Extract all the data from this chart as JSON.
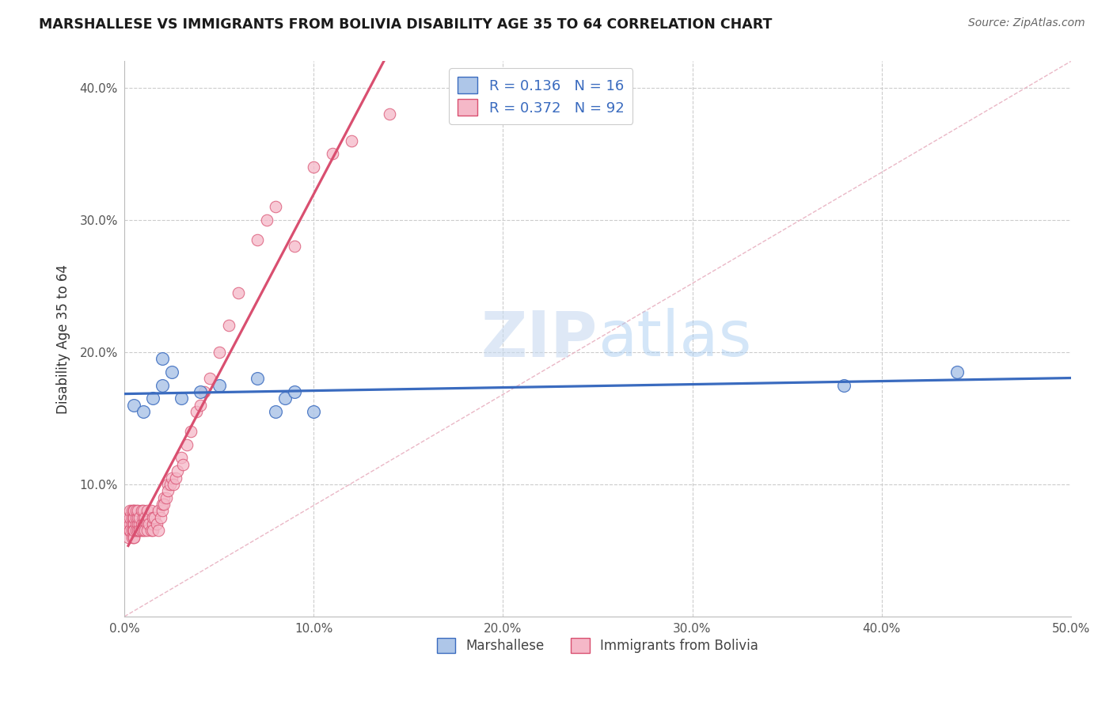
{
  "title": "MARSHALLESE VS IMMIGRANTS FROM BOLIVIA DISABILITY AGE 35 TO 64 CORRELATION CHART",
  "source": "Source: ZipAtlas.com",
  "ylabel": "Disability Age 35 to 64",
  "xlim": [
    0.0,
    0.5
  ],
  "ylim": [
    0.0,
    0.42
  ],
  "xticks": [
    0.0,
    0.1,
    0.2,
    0.3,
    0.4,
    0.5
  ],
  "yticks": [
    0.0,
    0.1,
    0.2,
    0.3,
    0.4
  ],
  "xtick_labels": [
    "0.0%",
    "10.0%",
    "20.0%",
    "30.0%",
    "40.0%",
    "50.0%"
  ],
  "ytick_labels": [
    "",
    "10.0%",
    "20.0%",
    "30.0%",
    "40.0%"
  ],
  "r_marshallese": 0.136,
  "n_marshallese": 16,
  "r_bolivia": 0.372,
  "n_bolivia": 92,
  "marshallese_color": "#aec6e8",
  "bolivia_color": "#f5b8c8",
  "line_marshallese_color": "#3a6bbf",
  "line_bolivia_color": "#d94f70",
  "ref_line_color": "#e8b0c0",
  "grid_color": "#cccccc",
  "title_color": "#1a1a1a",
  "source_color": "#666666",
  "legend_label_marshallese": "Marshallese",
  "legend_label_bolivia": "Immigrants from Bolivia",
  "watermark_zip": "ZIP",
  "watermark_atlas": "atlas",
  "marshallese_x": [
    0.005,
    0.01,
    0.015,
    0.02,
    0.02,
    0.025,
    0.03,
    0.04,
    0.05,
    0.07,
    0.08,
    0.085,
    0.09,
    0.1,
    0.38,
    0.44
  ],
  "marshallese_y": [
    0.16,
    0.155,
    0.165,
    0.195,
    0.175,
    0.185,
    0.165,
    0.17,
    0.175,
    0.18,
    0.155,
    0.165,
    0.17,
    0.155,
    0.175,
    0.185
  ],
  "bolivia_x": [
    0.002,
    0.002,
    0.002,
    0.002,
    0.003,
    0.003,
    0.003,
    0.003,
    0.003,
    0.004,
    0.004,
    0.004,
    0.004,
    0.004,
    0.005,
    0.005,
    0.005,
    0.005,
    0.005,
    0.005,
    0.005,
    0.005,
    0.005,
    0.005,
    0.005,
    0.006,
    0.006,
    0.006,
    0.006,
    0.007,
    0.007,
    0.007,
    0.007,
    0.008,
    0.008,
    0.008,
    0.008,
    0.009,
    0.009,
    0.009,
    0.01,
    0.01,
    0.01,
    0.01,
    0.011,
    0.011,
    0.012,
    0.012,
    0.012,
    0.013,
    0.013,
    0.014,
    0.014,
    0.015,
    0.015,
    0.015,
    0.016,
    0.017,
    0.018,
    0.018,
    0.019,
    0.02,
    0.02,
    0.021,
    0.021,
    0.022,
    0.023,
    0.023,
    0.024,
    0.025,
    0.026,
    0.027,
    0.028,
    0.03,
    0.031,
    0.033,
    0.035,
    0.038,
    0.04,
    0.042,
    0.045,
    0.05,
    0.055,
    0.06,
    0.07,
    0.075,
    0.08,
    0.09,
    0.1,
    0.11,
    0.12,
    0.14
  ],
  "bolivia_y": [
    0.065,
    0.07,
    0.06,
    0.075,
    0.065,
    0.07,
    0.075,
    0.065,
    0.08,
    0.07,
    0.075,
    0.065,
    0.06,
    0.08,
    0.07,
    0.075,
    0.065,
    0.06,
    0.08,
    0.07,
    0.065,
    0.075,
    0.06,
    0.08,
    0.065,
    0.07,
    0.075,
    0.065,
    0.08,
    0.07,
    0.075,
    0.065,
    0.08,
    0.065,
    0.07,
    0.075,
    0.065,
    0.07,
    0.08,
    0.065,
    0.075,
    0.07,
    0.065,
    0.08,
    0.075,
    0.065,
    0.07,
    0.08,
    0.065,
    0.075,
    0.07,
    0.065,
    0.08,
    0.07,
    0.075,
    0.065,
    0.075,
    0.07,
    0.065,
    0.08,
    0.075,
    0.08,
    0.085,
    0.09,
    0.085,
    0.09,
    0.1,
    0.095,
    0.1,
    0.105,
    0.1,
    0.105,
    0.11,
    0.12,
    0.115,
    0.13,
    0.14,
    0.155,
    0.16,
    0.17,
    0.18,
    0.2,
    0.22,
    0.245,
    0.285,
    0.3,
    0.31,
    0.28,
    0.34,
    0.35,
    0.36,
    0.38
  ]
}
